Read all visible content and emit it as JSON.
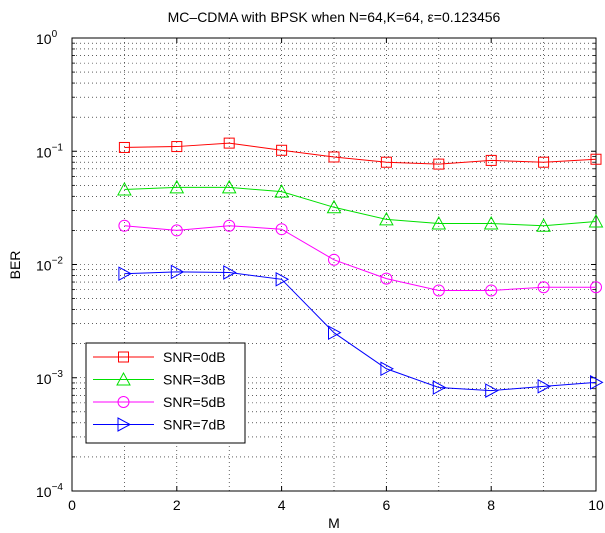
{
  "chart_data": {
    "type": "line",
    "title": "MC–CDMA with BPSK when N=64,K=64, ε=0.123456",
    "xlabel": "M",
    "ylabel": "BER",
    "xlim": [
      0,
      10
    ],
    "ylim": [
      0.0001,
      1
    ],
    "yscale": "log",
    "grid": true,
    "legend_position": "bottom-left",
    "x_ticks": [
      "0",
      "2",
      "4",
      "6",
      "8",
      "10"
    ],
    "y_ticks": [
      {
        "base": "10",
        "exp": "0"
      },
      {
        "base": "10",
        "exp": "−1"
      },
      {
        "base": "10",
        "exp": "−2"
      },
      {
        "base": "10",
        "exp": "−3"
      },
      {
        "base": "10",
        "exp": "−4"
      }
    ],
    "x": [
      1,
      2,
      3,
      4,
      5,
      6,
      7,
      8,
      9,
      10
    ],
    "series": [
      {
        "name": "SNR=0dB",
        "color": "#ff0000",
        "marker": "square",
        "values": [
          0.108,
          0.11,
          0.118,
          0.102,
          0.089,
          0.08,
          0.077,
          0.083,
          0.08,
          0.085
        ]
      },
      {
        "name": "SNR=3dB",
        "color": "#00e000",
        "marker": "triangle-up",
        "values": [
          0.046,
          0.048,
          0.048,
          0.044,
          0.032,
          0.025,
          0.023,
          0.023,
          0.022,
          0.024
        ]
      },
      {
        "name": "SNR=5dB",
        "color": "#ff00ff",
        "marker": "circle",
        "values": [
          0.022,
          0.02,
          0.022,
          0.0205,
          0.011,
          0.0075,
          0.0059,
          0.0059,
          0.0063,
          0.0063
        ]
      },
      {
        "name": "SNR=7dB",
        "color": "#0000ff",
        "marker": "triangle-right",
        "values": [
          0.0083,
          0.0086,
          0.0085,
          0.0074,
          0.0025,
          0.0012,
          0.00082,
          0.00077,
          0.00084,
          0.00091
        ]
      }
    ]
  }
}
